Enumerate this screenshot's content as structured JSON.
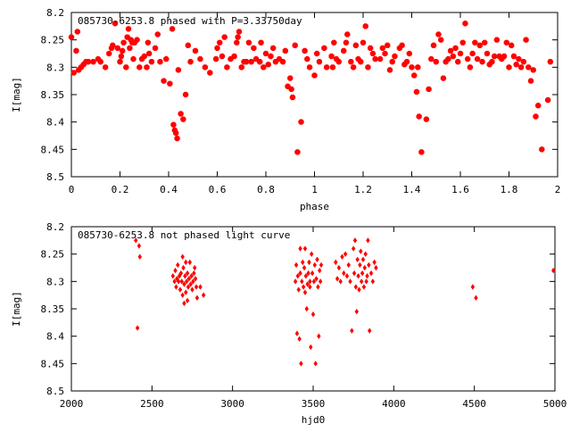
{
  "chart_data": [
    {
      "type": "scatter",
      "title": "085730-6253.8 phased with P=3.33750day",
      "xlabel": "phase",
      "ylabel": "I[mag]",
      "xlim": [
        0,
        2
      ],
      "ylim": [
        8.5,
        8.2
      ],
      "y_inverted": true,
      "x_ticks": [
        "0",
        "0.2",
        "0.4",
        "0.6",
        "0.8",
        "1",
        "1.2",
        "1.4",
        "1.6",
        "1.8",
        "2"
      ],
      "y_ticks": [
        "8.2",
        "8.25",
        "8.3",
        "8.35",
        "8.4",
        "8.45",
        "8.5"
      ],
      "grid": false,
      "marker_color": "#ff0000",
      "points": [
        [
          0.0,
          8.245
        ],
        [
          0.01,
          8.31
        ],
        [
          0.02,
          8.27
        ],
        [
          0.025,
          8.235
        ],
        [
          0.03,
          8.305
        ],
        [
          0.04,
          8.3
        ],
        [
          0.05,
          8.295
        ],
        [
          0.06,
          8.29
        ],
        [
          0.07,
          8.29
        ],
        [
          0.09,
          8.29
        ],
        [
          0.11,
          8.285
        ],
        [
          0.12,
          8.29
        ],
        [
          0.14,
          8.3
        ],
        [
          0.155,
          8.275
        ],
        [
          0.165,
          8.265
        ],
        [
          0.17,
          8.26
        ],
        [
          0.18,
          8.22
        ],
        [
          0.19,
          8.265
        ],
        [
          0.2,
          8.29
        ],
        [
          0.205,
          8.28
        ],
        [
          0.21,
          8.27
        ],
        [
          0.215,
          8.255
        ],
        [
          0.225,
          8.3
        ],
        [
          0.23,
          8.245
        ],
        [
          0.235,
          8.23
        ],
        [
          0.24,
          8.265
        ],
        [
          0.245,
          8.25
        ],
        [
          0.25,
          8.255
        ],
        [
          0.255,
          8.285
        ],
        [
          0.26,
          8.255
        ],
        [
          0.27,
          8.25
        ],
        [
          0.28,
          8.3
        ],
        [
          0.29,
          8.285
        ],
        [
          0.3,
          8.28
        ],
        [
          0.31,
          8.3
        ],
        [
          0.315,
          8.255
        ],
        [
          0.32,
          8.275
        ],
        [
          0.33,
          8.29
        ],
        [
          0.345,
          8.265
        ],
        [
          0.355,
          8.24
        ],
        [
          0.365,
          8.29
        ],
        [
          0.38,
          8.325
        ],
        [
          0.39,
          8.285
        ],
        [
          0.405,
          8.33
        ],
        [
          0.415,
          8.23
        ],
        [
          0.42,
          8.405
        ],
        [
          0.425,
          8.415
        ],
        [
          0.43,
          8.42
        ],
        [
          0.435,
          8.43
        ],
        [
          0.44,
          8.305
        ],
        [
          0.45,
          8.385
        ],
        [
          0.46,
          8.395
        ],
        [
          0.47,
          8.35
        ],
        [
          0.48,
          8.26
        ],
        [
          0.49,
          8.29
        ],
        [
          0.51,
          8.27
        ],
        [
          0.53,
          8.285
        ],
        [
          0.55,
          8.3
        ],
        [
          0.57,
          8.31
        ],
        [
          0.595,
          8.285
        ],
        [
          0.6,
          8.265
        ],
        [
          0.61,
          8.255
        ],
        [
          0.62,
          8.28
        ],
        [
          0.63,
          8.245
        ],
        [
          0.64,
          8.3
        ],
        [
          0.655,
          8.285
        ],
        [
          0.67,
          8.28
        ],
        [
          0.68,
          8.255
        ],
        [
          0.685,
          8.245
        ],
        [
          0.69,
          8.235
        ],
        [
          0.7,
          8.3
        ],
        [
          0.71,
          8.29
        ],
        [
          0.72,
          8.29
        ],
        [
          0.73,
          8.255
        ],
        [
          0.74,
          8.29
        ],
        [
          0.75,
          8.265
        ],
        [
          0.76,
          8.285
        ],
        [
          0.775,
          8.29
        ],
        [
          0.78,
          8.255
        ],
        [
          0.79,
          8.3
        ],
        [
          0.8,
          8.275
        ],
        [
          0.81,
          8.295
        ],
        [
          0.82,
          8.28
        ],
        [
          0.83,
          8.265
        ],
        [
          0.84,
          8.29
        ],
        [
          0.855,
          8.285
        ],
        [
          0.87,
          8.29
        ],
        [
          0.88,
          8.27
        ],
        [
          0.89,
          8.335
        ],
        [
          0.9,
          8.32
        ],
        [
          0.905,
          8.34
        ],
        [
          0.91,
          8.355
        ],
        [
          0.92,
          8.26
        ],
        [
          0.93,
          8.455
        ],
        [
          0.945,
          8.4
        ],
        [
          0.96,
          8.27
        ],
        [
          0.97,
          8.285
        ],
        [
          0.98,
          8.3
        ],
        [
          1.0,
          8.315
        ],
        [
          1.01,
          8.275
        ],
        [
          1.02,
          8.29
        ],
        [
          1.04,
          8.265
        ],
        [
          1.05,
          8.3
        ],
        [
          1.07,
          8.28
        ],
        [
          1.075,
          8.3
        ],
        [
          1.08,
          8.255
        ],
        [
          1.09,
          8.285
        ],
        [
          1.1,
          8.29
        ],
        [
          1.12,
          8.27
        ],
        [
          1.13,
          8.255
        ],
        [
          1.135,
          8.24
        ],
        [
          1.15,
          8.29
        ],
        [
          1.16,
          8.3
        ],
        [
          1.17,
          8.26
        ],
        [
          1.18,
          8.285
        ],
        [
          1.19,
          8.29
        ],
        [
          1.2,
          8.255
        ],
        [
          1.21,
          8.225
        ],
        [
          1.22,
          8.3
        ],
        [
          1.23,
          8.265
        ],
        [
          1.24,
          8.275
        ],
        [
          1.25,
          8.285
        ],
        [
          1.27,
          8.285
        ],
        [
          1.28,
          8.265
        ],
        [
          1.29,
          8.275
        ],
        [
          1.3,
          8.26
        ],
        [
          1.31,
          8.305
        ],
        [
          1.32,
          8.29
        ],
        [
          1.33,
          8.28
        ],
        [
          1.35,
          8.265
        ],
        [
          1.36,
          8.26
        ],
        [
          1.37,
          8.295
        ],
        [
          1.38,
          8.29
        ],
        [
          1.39,
          8.275
        ],
        [
          1.4,
          8.3
        ],
        [
          1.41,
          8.315
        ],
        [
          1.42,
          8.345
        ],
        [
          1.425,
          8.3
        ],
        [
          1.43,
          8.39
        ],
        [
          1.44,
          8.455
        ],
        [
          1.46,
          8.395
        ],
        [
          1.47,
          8.34
        ],
        [
          1.48,
          8.285
        ],
        [
          1.49,
          8.26
        ],
        [
          1.5,
          8.29
        ],
        [
          1.51,
          8.24
        ],
        [
          1.52,
          8.25
        ],
        [
          1.53,
          8.32
        ],
        [
          1.54,
          8.29
        ],
        [
          1.55,
          8.285
        ],
        [
          1.56,
          8.27
        ],
        [
          1.57,
          8.28
        ],
        [
          1.58,
          8.265
        ],
        [
          1.59,
          8.29
        ],
        [
          1.6,
          8.275
        ],
        [
          1.61,
          8.255
        ],
        [
          1.62,
          8.22
        ],
        [
          1.63,
          8.285
        ],
        [
          1.64,
          8.3
        ],
        [
          1.65,
          8.275
        ],
        [
          1.66,
          8.255
        ],
        [
          1.67,
          8.285
        ],
        [
          1.68,
          8.26
        ],
        [
          1.69,
          8.29
        ],
        [
          1.7,
          8.255
        ],
        [
          1.71,
          8.275
        ],
        [
          1.72,
          8.295
        ],
        [
          1.73,
          8.29
        ],
        [
          1.74,
          8.28
        ],
        [
          1.75,
          8.25
        ],
        [
          1.76,
          8.28
        ],
        [
          1.77,
          8.285
        ],
        [
          1.78,
          8.28
        ],
        [
          1.79,
          8.255
        ],
        [
          1.8,
          8.3
        ],
        [
          1.81,
          8.26
        ],
        [
          1.82,
          8.28
        ],
        [
          1.83,
          8.295
        ],
        [
          1.84,
          8.285
        ],
        [
          1.85,
          8.3
        ],
        [
          1.86,
          8.29
        ],
        [
          1.87,
          8.25
        ],
        [
          1.88,
          8.3
        ],
        [
          1.89,
          8.325
        ],
        [
          1.9,
          8.305
        ],
        [
          1.91,
          8.39
        ],
        [
          1.92,
          8.37
        ],
        [
          1.935,
          8.45
        ],
        [
          1.96,
          8.36
        ],
        [
          1.97,
          8.29
        ]
      ]
    },
    {
      "type": "scatter",
      "title": "085730-6253.8 not phased light curve",
      "xlabel": "hjd0",
      "ylabel": "I[mag]",
      "xlim": [
        2000,
        5000
      ],
      "ylim": [
        8.5,
        8.2
      ],
      "y_inverted": true,
      "x_ticks": [
        "2000",
        "2500",
        "3000",
        "3500",
        "4000",
        "4500",
        "5000"
      ],
      "y_ticks": [
        "8.2",
        "8.25",
        "8.3",
        "8.35",
        "8.4",
        "8.45",
        "8.5"
      ],
      "grid": false,
      "marker_color": "#ff0000",
      "points": [
        [
          2400,
          8.225
        ],
        [
          2410,
          8.385
        ],
        [
          2420,
          8.235
        ],
        [
          2425,
          8.255
        ],
        [
          2630,
          8.29
        ],
        [
          2640,
          8.3
        ],
        [
          2645,
          8.28
        ],
        [
          2650,
          8.31
        ],
        [
          2655,
          8.295
        ],
        [
          2660,
          8.27
        ],
        [
          2665,
          8.3
        ],
        [
          2670,
          8.29
        ],
        [
          2675,
          8.315
        ],
        [
          2680,
          8.285
        ],
        [
          2685,
          8.3
        ],
        [
          2690,
          8.325
        ],
        [
          2695,
          8.275
        ],
        [
          2700,
          8.305
        ],
        [
          2705,
          8.29
        ],
        [
          2710,
          8.32
        ],
        [
          2715,
          8.3
        ],
        [
          2720,
          8.285
        ],
        [
          2725,
          8.31
        ],
        [
          2730,
          8.295
        ],
        [
          2735,
          8.265
        ],
        [
          2740,
          8.305
        ],
        [
          2745,
          8.29
        ],
        [
          2750,
          8.315
        ],
        [
          2755,
          8.3
        ],
        [
          2760,
          8.285
        ],
        [
          2765,
          8.275
        ],
        [
          2770,
          8.295
        ],
        [
          2775,
          8.31
        ],
        [
          2780,
          8.33
        ],
        [
          2700,
          8.34
        ],
        [
          2720,
          8.335
        ],
        [
          2690,
          8.255
        ],
        [
          2710,
          8.265
        ],
        [
          2800,
          8.31
        ],
        [
          2820,
          8.325
        ],
        [
          3390,
          8.3
        ],
        [
          3395,
          8.27
        ],
        [
          3400,
          8.395
        ],
        [
          3405,
          8.29
        ],
        [
          3410,
          8.315
        ],
        [
          3415,
          8.405
        ],
        [
          3420,
          8.285
        ],
        [
          3425,
          8.45
        ],
        [
          3430,
          8.3
        ],
        [
          3435,
          8.265
        ],
        [
          3440,
          8.31
        ],
        [
          3445,
          8.275
        ],
        [
          3450,
          8.24
        ],
        [
          3455,
          8.29
        ],
        [
          3460,
          8.35
        ],
        [
          3465,
          8.305
        ],
        [
          3470,
          8.285
        ],
        [
          3475,
          8.265
        ],
        [
          3480,
          8.3
        ],
        [
          3485,
          8.42
        ],
        [
          3490,
          8.25
        ],
        [
          3495,
          8.285
        ],
        [
          3500,
          8.36
        ],
        [
          3505,
          8.3
        ],
        [
          3510,
          8.27
        ],
        [
          3515,
          8.45
        ],
        [
          3520,
          8.295
        ],
        [
          3525,
          8.26
        ],
        [
          3530,
          8.31
        ],
        [
          3535,
          8.4
        ],
        [
          3540,
          8.28
        ],
        [
          3545,
          8.3
        ],
        [
          3550,
          8.27
        ],
        [
          3420,
          8.24
        ],
        [
          3450,
          8.32
        ],
        [
          3480,
          8.31
        ],
        [
          3640,
          8.265
        ],
        [
          3650,
          8.295
        ],
        [
          3660,
          8.275
        ],
        [
          3670,
          8.3
        ],
        [
          3680,
          8.255
        ],
        [
          3690,
          8.285
        ],
        [
          3700,
          8.25
        ],
        [
          3710,
          8.29
        ],
        [
          3720,
          8.27
        ],
        [
          3730,
          8.3
        ],
        [
          3740,
          8.39
        ],
        [
          3750,
          8.24
        ],
        [
          3755,
          8.285
        ],
        [
          3760,
          8.225
        ],
        [
          3765,
          8.31
        ],
        [
          3770,
          8.355
        ],
        [
          3775,
          8.26
        ],
        [
          3780,
          8.29
        ],
        [
          3785,
          8.315
        ],
        [
          3790,
          8.27
        ],
        [
          3795,
          8.245
        ],
        [
          3800,
          8.3
        ],
        [
          3805,
          8.285
        ],
        [
          3810,
          8.26
        ],
        [
          3815,
          8.31
        ],
        [
          3820,
          8.275
        ],
        [
          3825,
          8.25
        ],
        [
          3830,
          8.3
        ],
        [
          3835,
          8.29
        ],
        [
          3840,
          8.225
        ],
        [
          3845,
          8.27
        ],
        [
          3850,
          8.39
        ],
        [
          3860,
          8.285
        ],
        [
          3870,
          8.3
        ],
        [
          3880,
          8.265
        ],
        [
          3890,
          8.275
        ],
        [
          4490,
          8.31
        ],
        [
          4510,
          8.33
        ],
        [
          4990,
          8.28
        ]
      ]
    }
  ]
}
